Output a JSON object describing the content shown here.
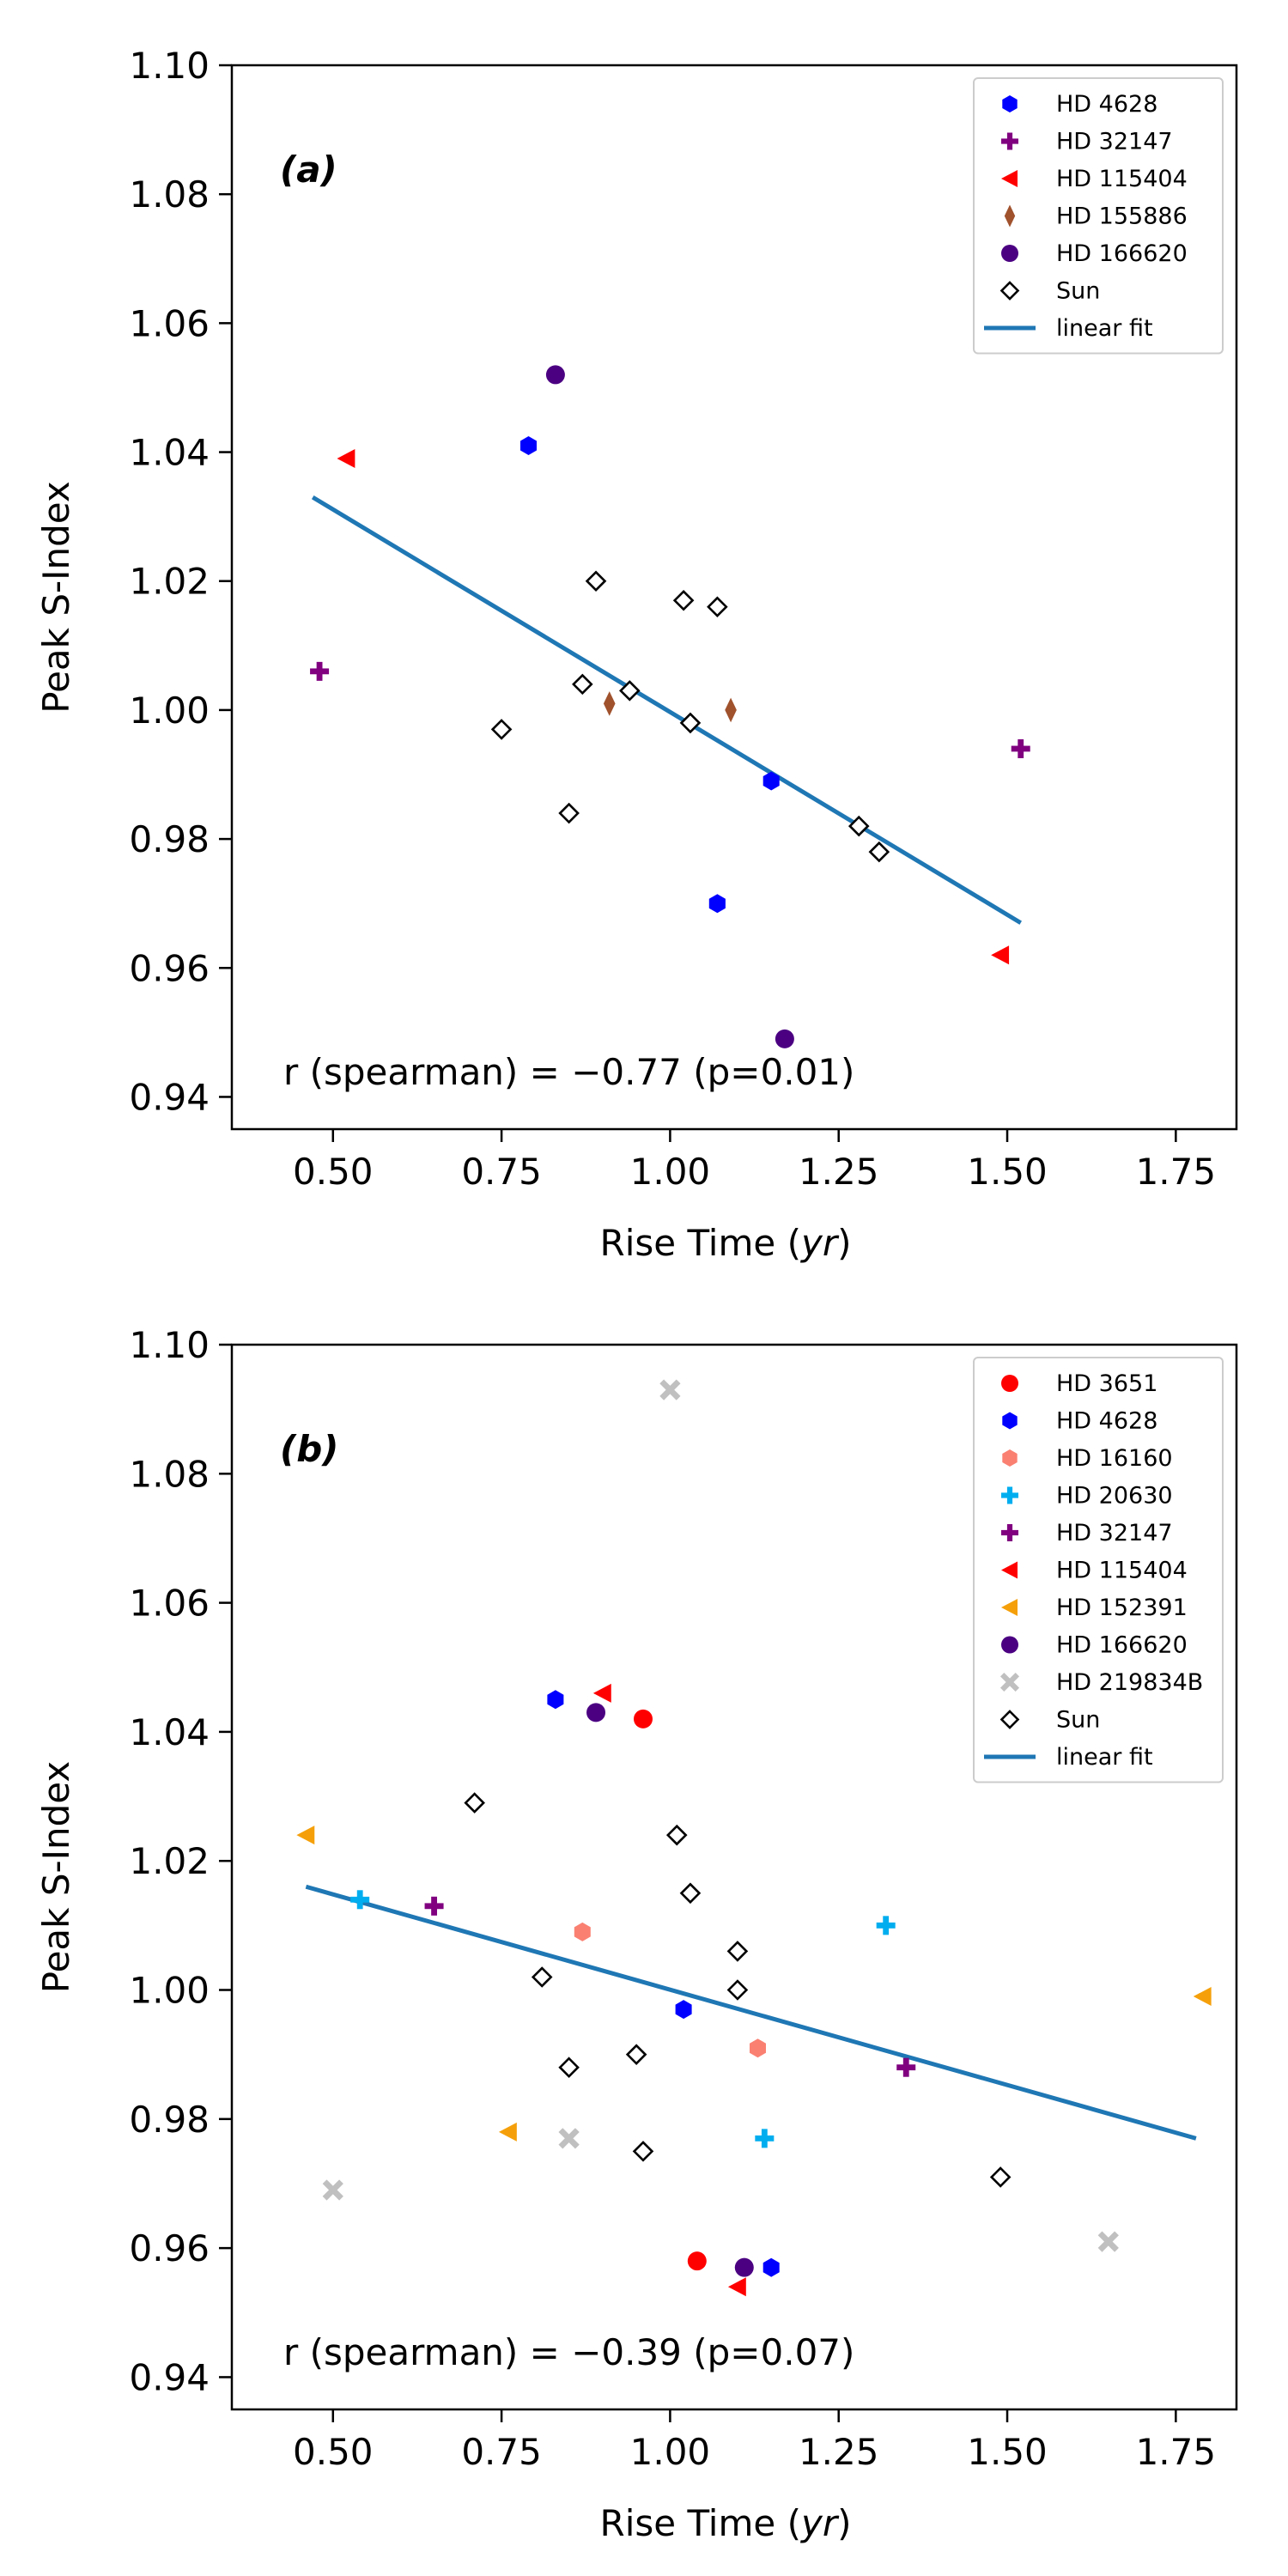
{
  "chart_data": [
    {
      "type": "scatter",
      "panel_label": "(a)",
      "xlabel_main": "Rise Time (",
      "xlabel_unit": "yr",
      "xlabel_close": ")",
      "ylabel": "Peak S-Index",
      "xlim": [
        0.35,
        1.84
      ],
      "ylim": [
        0.935,
        1.1
      ],
      "xticks": [
        0.5,
        0.75,
        1.0,
        1.25,
        1.5,
        1.75
      ],
      "xtick_labels": [
        "0.50",
        "0.75",
        "1.00",
        "1.25",
        "1.50",
        "1.75"
      ],
      "yticks": [
        0.94,
        0.96,
        0.98,
        1.0,
        1.02,
        1.04,
        1.06,
        1.08,
        1.1
      ],
      "ytick_labels": [
        "0.94",
        "0.96",
        "0.98",
        "1.00",
        "1.02",
        "1.04",
        "1.06",
        "1.08",
        "1.10"
      ],
      "annotation": "r (spearman) = −0.77  (p=0.01)",
      "legend_position": "top-right",
      "series": [
        {
          "name": "HD 4628",
          "marker": "hexagon",
          "color": "#0000ff",
          "points": [
            [
              0.79,
              1.041
            ],
            [
              1.07,
              0.97
            ],
            [
              1.15,
              0.989
            ]
          ]
        },
        {
          "name": "HD 32147",
          "marker": "plus",
          "color": "#800080",
          "points": [
            [
              0.48,
              1.006
            ],
            [
              1.52,
              0.994
            ]
          ]
        },
        {
          "name": "HD 115404",
          "marker": "triangle-left",
          "color": "#ff0000",
          "points": [
            [
              0.52,
              1.039
            ],
            [
              1.49,
              0.962
            ]
          ]
        },
        {
          "name": "HD 155886",
          "marker": "thin-diamond",
          "color": "#a0522d",
          "points": [
            [
              0.91,
              1.001
            ],
            [
              1.09,
              1.0
            ]
          ]
        },
        {
          "name": "HD 166620",
          "marker": "circle",
          "color": "#4b0082",
          "points": [
            [
              0.83,
              1.052
            ],
            [
              1.17,
              0.949
            ]
          ]
        },
        {
          "name": "Sun",
          "marker": "diamond-open",
          "color": "#000000",
          "points": [
            [
              0.75,
              0.997
            ],
            [
              0.85,
              0.984
            ],
            [
              0.87,
              1.004
            ],
            [
              0.89,
              1.02
            ],
            [
              0.94,
              1.003
            ],
            [
              1.02,
              1.017
            ],
            [
              1.03,
              0.998
            ],
            [
              1.07,
              1.016
            ],
            [
              1.28,
              0.982
            ],
            [
              1.31,
              0.978
            ]
          ]
        }
      ],
      "fit": {
        "name": "linear fit",
        "color": "#1f77b4",
        "x": [
          0.47,
          1.52
        ],
        "y": [
          1.033,
          0.967
        ]
      }
    },
    {
      "type": "scatter",
      "panel_label": "(b)",
      "xlabel_main": "Rise Time (",
      "xlabel_unit": "yr",
      "xlabel_close": ")",
      "ylabel": "Peak S-Index",
      "xlim": [
        0.35,
        1.84
      ],
      "ylim": [
        0.935,
        1.1
      ],
      "xticks": [
        0.5,
        0.75,
        1.0,
        1.25,
        1.5,
        1.75
      ],
      "xtick_labels": [
        "0.50",
        "0.75",
        "1.00",
        "1.25",
        "1.50",
        "1.75"
      ],
      "yticks": [
        0.94,
        0.96,
        0.98,
        1.0,
        1.02,
        1.04,
        1.06,
        1.08,
        1.1
      ],
      "ytick_labels": [
        "0.94",
        "0.96",
        "0.98",
        "1.00",
        "1.02",
        "1.04",
        "1.06",
        "1.08",
        "1.10"
      ],
      "annotation": "r (spearman) = −0.39  (p=0.07)",
      "legend_position": "top-right",
      "series": [
        {
          "name": "HD 3651",
          "marker": "circle",
          "color": "#ff0000",
          "points": [
            [
              0.96,
              1.042
            ],
            [
              1.04,
              0.958
            ]
          ]
        },
        {
          "name": "HD 4628",
          "marker": "hexagon",
          "color": "#0000ff",
          "points": [
            [
              0.83,
              1.045
            ],
            [
              1.02,
              0.997
            ],
            [
              1.15,
              0.957
            ]
          ]
        },
        {
          "name": "HD 16160",
          "marker": "hexagon",
          "color": "#fa8072",
          "points": [
            [
              0.87,
              1.009
            ],
            [
              1.13,
              0.991
            ]
          ]
        },
        {
          "name": "HD 20630",
          "marker": "plus",
          "color": "#00aeef",
          "points": [
            [
              0.54,
              1.014
            ],
            [
              1.14,
              0.977
            ],
            [
              1.32,
              1.01
            ]
          ]
        },
        {
          "name": "HD 32147",
          "marker": "plus",
          "color": "#800080",
          "points": [
            [
              0.65,
              1.013
            ],
            [
              1.35,
              0.988
            ]
          ]
        },
        {
          "name": "HD 115404",
          "marker": "triangle-left",
          "color": "#ff0000",
          "points": [
            [
              0.9,
              1.046
            ],
            [
              1.1,
              0.954
            ]
          ]
        },
        {
          "name": "HD 152391",
          "marker": "triangle-left",
          "color": "#f5a00a",
          "points": [
            [
              0.46,
              1.024
            ],
            [
              0.76,
              0.978
            ],
            [
              1.79,
              0.999
            ]
          ]
        },
        {
          "name": "HD 166620",
          "marker": "circle",
          "color": "#4b0082",
          "points": [
            [
              0.89,
              1.043
            ],
            [
              1.11,
              0.957
            ]
          ]
        },
        {
          "name": "HD 219834B",
          "marker": "x",
          "color": "#c0c0c0",
          "points": [
            [
              0.5,
              0.969
            ],
            [
              0.85,
              0.977
            ],
            [
              1.0,
              1.093
            ],
            [
              1.65,
              0.961
            ]
          ]
        },
        {
          "name": "Sun",
          "marker": "diamond-open",
          "color": "#000000",
          "points": [
            [
              0.71,
              1.029
            ],
            [
              0.81,
              1.002
            ],
            [
              0.85,
              0.988
            ],
            [
              0.95,
              0.99
            ],
            [
              0.96,
              0.975
            ],
            [
              1.01,
              1.024
            ],
            [
              1.03,
              1.015
            ],
            [
              1.1,
              1.0
            ],
            [
              1.1,
              1.006
            ],
            [
              1.49,
              0.971
            ]
          ]
        }
      ],
      "fit": {
        "name": "linear fit",
        "color": "#1f77b4",
        "x": [
          0.46,
          1.78
        ],
        "y": [
          1.016,
          0.977
        ]
      }
    }
  ]
}
